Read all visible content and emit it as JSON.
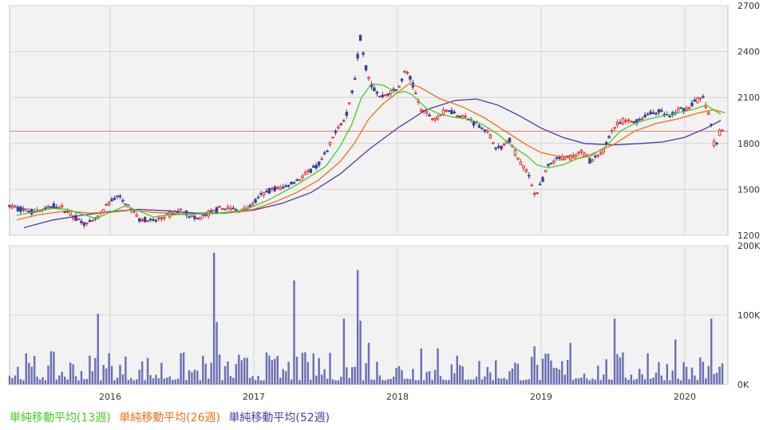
{
  "chart_data": {
    "type": "candlestick",
    "price_axis": {
      "ticks": [
        "2700",
        "2400",
        "2100",
        "1800",
        "1500",
        "1200"
      ],
      "ylim": [
        1200,
        2700
      ]
    },
    "volume_axis": {
      "ticks": [
        "200K",
        "100K",
        "0K"
      ],
      "ylim": [
        0,
        200000
      ]
    },
    "x_ticks": [
      "2016",
      "2017",
      "2018",
      "2019",
      "2020"
    ],
    "x_range": [
      2015.3,
      2020.3
    ],
    "reference_line": 1880,
    "colors": {
      "up": "#e03030",
      "down": "#3a3f9a",
      "volume": "#6b70b4",
      "ma13": "#44cc22",
      "ma26": "#ee6e16",
      "ma52": "#4a3aa8",
      "refline": "#ee7c7c",
      "grid": "#d6d6d6",
      "panel_bg": "#f2f2f2"
    },
    "price_path": [
      [
        2015.3,
        1390
      ],
      [
        2015.45,
        1355
      ],
      [
        2015.55,
        1370
      ],
      [
        2015.62,
        1395
      ],
      [
        2015.7,
        1360
      ],
      [
        2015.78,
        1300
      ],
      [
        2015.85,
        1270
      ],
      [
        2015.92,
        1320
      ],
      [
        2016.0,
        1420
      ],
      [
        2016.05,
        1455
      ],
      [
        2016.12,
        1400
      ],
      [
        2016.2,
        1310
      ],
      [
        2016.3,
        1290
      ],
      [
        2016.4,
        1330
      ],
      [
        2016.5,
        1365
      ],
      [
        2016.6,
        1300
      ],
      [
        2016.7,
        1350
      ],
      [
        2016.8,
        1380
      ],
      [
        2016.9,
        1360
      ],
      [
        2016.98,
        1390
      ],
      [
        2017.05,
        1460
      ],
      [
        2017.12,
        1500
      ],
      [
        2017.2,
        1510
      ],
      [
        2017.3,
        1560
      ],
      [
        2017.38,
        1610
      ],
      [
        2017.45,
        1660
      ],
      [
        2017.52,
        1760
      ],
      [
        2017.58,
        1910
      ],
      [
        2017.64,
        1960
      ],
      [
        2017.7,
        2200
      ],
      [
        2017.74,
        2500
      ],
      [
        2017.78,
        2300
      ],
      [
        2017.82,
        2180
      ],
      [
        2017.88,
        2100
      ],
      [
        2017.94,
        2130
      ],
      [
        2018.0,
        2150
      ],
      [
        2018.06,
        2280
      ],
      [
        2018.1,
        2200
      ],
      [
        2018.16,
        2030
      ],
      [
        2018.25,
        1960
      ],
      [
        2018.35,
        2020
      ],
      [
        2018.45,
        1980
      ],
      [
        2018.55,
        1930
      ],
      [
        2018.62,
        1880
      ],
      [
        2018.7,
        1760
      ],
      [
        2018.78,
        1820
      ],
      [
        2018.84,
        1700
      ],
      [
        2018.9,
        1620
      ],
      [
        2018.96,
        1460
      ],
      [
        2019.0,
        1540
      ],
      [
        2019.05,
        1650
      ],
      [
        2019.12,
        1700
      ],
      [
        2019.2,
        1710
      ],
      [
        2019.28,
        1750
      ],
      [
        2019.35,
        1680
      ],
      [
        2019.42,
        1730
      ],
      [
        2019.5,
        1900
      ],
      [
        2019.58,
        1950
      ],
      [
        2019.66,
        1940
      ],
      [
        2019.74,
        1990
      ],
      [
        2019.82,
        2010
      ],
      [
        2019.9,
        1970
      ],
      [
        2019.96,
        2020
      ],
      [
        2020.02,
        2030
      ],
      [
        2020.08,
        2080
      ],
      [
        2020.13,
        2100
      ],
      [
        2020.18,
        1950
      ],
      [
        2020.21,
        1760
      ],
      [
        2020.24,
        1870
      ],
      [
        2020.28,
        1900
      ]
    ],
    "ma13_path": [
      [
        2015.35,
        1330
      ],
      [
        2015.5,
        1360
      ],
      [
        2015.6,
        1375
      ],
      [
        2015.7,
        1370
      ],
      [
        2015.8,
        1340
      ],
      [
        2015.9,
        1310
      ],
      [
        2016.0,
        1350
      ],
      [
        2016.1,
        1390
      ],
      [
        2016.2,
        1360
      ],
      [
        2016.3,
        1320
      ],
      [
        2016.45,
        1335
      ],
      [
        2016.6,
        1340
      ],
      [
        2016.75,
        1345
      ],
      [
        2016.9,
        1360
      ],
      [
        2017.0,
        1390
      ],
      [
        2017.1,
        1430
      ],
      [
        2017.2,
        1480
      ],
      [
        2017.3,
        1530
      ],
      [
        2017.4,
        1590
      ],
      [
        2017.5,
        1650
      ],
      [
        2017.6,
        1780
      ],
      [
        2017.68,
        1920
      ],
      [
        2017.75,
        2100
      ],
      [
        2017.82,
        2190
      ],
      [
        2017.9,
        2180
      ],
      [
        2018.0,
        2130
      ],
      [
        2018.05,
        2140
      ],
      [
        2018.1,
        2120
      ],
      [
        2018.2,
        2030
      ],
      [
        2018.3,
        1990
      ],
      [
        2018.4,
        1970
      ],
      [
        2018.5,
        1960
      ],
      [
        2018.6,
        1920
      ],
      [
        2018.7,
        1860
      ],
      [
        2018.8,
        1780
      ],
      [
        2018.9,
        1720
      ],
      [
        2018.97,
        1660
      ],
      [
        2019.05,
        1640
      ],
      [
        2019.15,
        1660
      ],
      [
        2019.25,
        1700
      ],
      [
        2019.35,
        1720
      ],
      [
        2019.45,
        1780
      ],
      [
        2019.55,
        1880
      ],
      [
        2019.65,
        1930
      ],
      [
        2019.75,
        1960
      ],
      [
        2019.85,
        1980
      ],
      [
        2019.95,
        2000
      ],
      [
        2020.05,
        2020
      ],
      [
        2020.15,
        2050
      ],
      [
        2020.25,
        1990
      ]
    ],
    "ma26_path": [
      [
        2015.35,
        1300
      ],
      [
        2015.5,
        1335
      ],
      [
        2015.7,
        1360
      ],
      [
        2015.85,
        1345
      ],
      [
        2016.0,
        1350
      ],
      [
        2016.15,
        1365
      ],
      [
        2016.3,
        1350
      ],
      [
        2016.5,
        1340
      ],
      [
        2016.7,
        1340
      ],
      [
        2016.9,
        1355
      ],
      [
        2017.0,
        1370
      ],
      [
        2017.15,
        1420
      ],
      [
        2017.3,
        1480
      ],
      [
        2017.45,
        1560
      ],
      [
        2017.6,
        1680
      ],
      [
        2017.7,
        1800
      ],
      [
        2017.8,
        1960
      ],
      [
        2017.9,
        2060
      ],
      [
        2018.0,
        2130
      ],
      [
        2018.08,
        2190
      ],
      [
        2018.15,
        2170
      ],
      [
        2018.3,
        2090
      ],
      [
        2018.45,
        2040
      ],
      [
        2018.6,
        1970
      ],
      [
        2018.75,
        1880
      ],
      [
        2018.9,
        1790
      ],
      [
        2019.0,
        1740
      ],
      [
        2019.1,
        1720
      ],
      [
        2019.25,
        1700
      ],
      [
        2019.35,
        1730
      ],
      [
        2019.5,
        1790
      ],
      [
        2019.65,
        1880
      ],
      [
        2019.8,
        1930
      ],
      [
        2019.95,
        1960
      ],
      [
        2020.1,
        2000
      ],
      [
        2020.2,
        2020
      ],
      [
        2020.28,
        2000
      ]
    ],
    "ma52_path": [
      [
        2015.4,
        1250
      ],
      [
        2015.6,
        1300
      ],
      [
        2015.8,
        1330
      ],
      [
        2016.0,
        1355
      ],
      [
        2016.2,
        1370
      ],
      [
        2016.4,
        1360
      ],
      [
        2016.6,
        1345
      ],
      [
        2016.8,
        1345
      ],
      [
        2017.0,
        1365
      ],
      [
        2017.2,
        1410
      ],
      [
        2017.4,
        1480
      ],
      [
        2017.6,
        1600
      ],
      [
        2017.8,
        1760
      ],
      [
        2018.0,
        1900
      ],
      [
        2018.2,
        2020
      ],
      [
        2018.4,
        2080
      ],
      [
        2018.55,
        2090
      ],
      [
        2018.7,
        2050
      ],
      [
        2018.85,
        1980
      ],
      [
        2019.0,
        1900
      ],
      [
        2019.15,
        1840
      ],
      [
        2019.3,
        1800
      ],
      [
        2019.5,
        1790
      ],
      [
        2019.7,
        1800
      ],
      [
        2019.85,
        1810
      ],
      [
        2020.0,
        1840
      ],
      [
        2020.15,
        1900
      ],
      [
        2020.25,
        1950
      ]
    ],
    "volume_spikes": [
      [
        2016.72,
        190000
      ],
      [
        2016.74,
        90000
      ],
      [
        2017.29,
        150000
      ],
      [
        2017.62,
        95000
      ],
      [
        2017.72,
        165000
      ],
      [
        2017.74,
        92000
      ],
      [
        2015.92,
        102000
      ],
      [
        2017.8,
        60000
      ],
      [
        2019.52,
        95000
      ],
      [
        2020.18,
        95000
      ],
      [
        2019.93,
        65000
      ],
      [
        2018.17,
        52000
      ],
      [
        2018.28,
        52000
      ],
      [
        2017.3,
        40000
      ],
      [
        2017.45,
        38000
      ],
      [
        2016.0,
        45000
      ],
      [
        2017.1,
        42000
      ],
      [
        2019.2,
        60000
      ],
      [
        2018.95,
        55000
      ],
      [
        2019.75,
        45000
      ]
    ],
    "legend": [
      {
        "label": "単純移動平均(13週)",
        "color": "#44cc22"
      },
      {
        "label": "単純移動平均(26週)",
        "color": "#ee6e16"
      },
      {
        "label": "単純移動平均(52週)",
        "color": "#4a3aa8"
      }
    ]
  }
}
